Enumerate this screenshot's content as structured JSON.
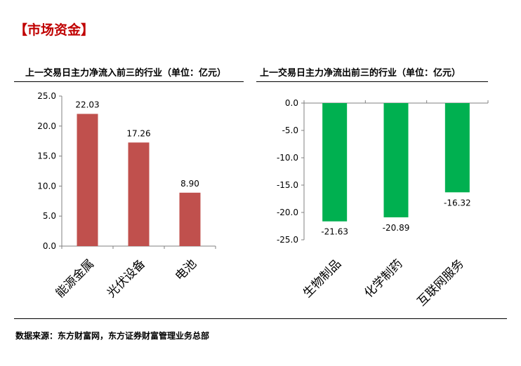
{
  "section_title": "【市场资金】",
  "source": "数据来源：东方财富网，东方证券财富管理业务总部",
  "colors": {
    "inflow": "#c0504d",
    "outflow": "#00b050",
    "title": "#c00000"
  },
  "chart_data": [
    {
      "type": "bar",
      "title": "上一交易日主力净流入前三的行业（单位：亿元）",
      "categories": [
        "能源金属",
        "光伏设备",
        "电池"
      ],
      "values": [
        22.03,
        17.26,
        8.9
      ],
      "value_labels": [
        "22.03",
        "17.26",
        "8.90"
      ],
      "ylim": [
        0,
        25
      ],
      "yticks": [
        "0.0",
        "5.0",
        "10.0",
        "15.0",
        "20.0",
        "25.0"
      ],
      "xlabel": "",
      "ylabel": "",
      "grid": false,
      "legend": "none"
    },
    {
      "type": "bar",
      "title": "上一交易日主力净流出前三的行业（单位：亿元）",
      "categories": [
        "生物制品",
        "化学制药",
        "互联网服务"
      ],
      "values": [
        -21.63,
        -20.89,
        -16.32
      ],
      "value_labels": [
        "-21.63",
        "-20.89",
        "-16.32"
      ],
      "ylim": [
        -25,
        0
      ],
      "yticks": [
        "0.0",
        "-5.0",
        "-10.0",
        "-15.0",
        "-20.0",
        "-25.0"
      ],
      "xlabel": "",
      "ylabel": "",
      "grid": false,
      "legend": "none"
    }
  ]
}
